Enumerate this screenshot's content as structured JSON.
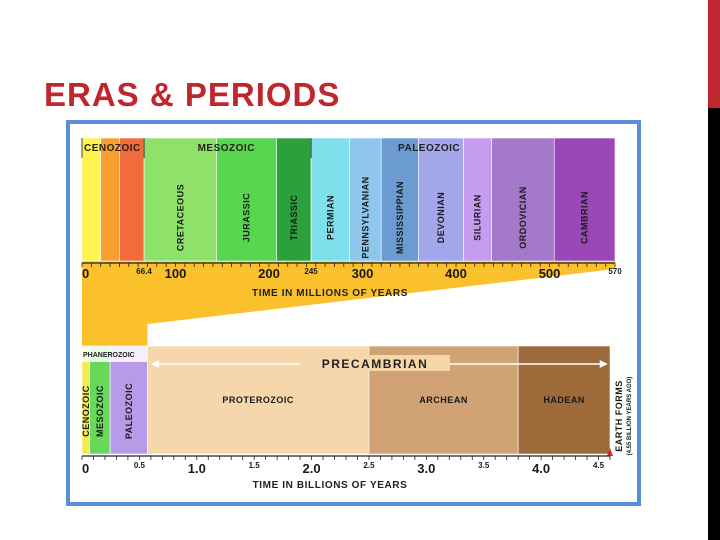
{
  "slide": {
    "title": "ERAS & PERIODS"
  },
  "colors": {
    "title": "#c0262d",
    "frame": "#5a8fd6",
    "connector": "#fbc12d"
  },
  "top": {
    "eras": [
      {
        "label": "CENOZOIC",
        "start": 0,
        "end": 66.4
      },
      {
        "label": "MESOZOIC",
        "start": 66.4,
        "end": 245
      },
      {
        "label": "PALEOZOIC",
        "start": 245,
        "end": 570
      }
    ],
    "periods": [
      {
        "label": "",
        "start": 0,
        "end": 20,
        "color": "#fff34d"
      },
      {
        "label": "",
        "start": 20,
        "end": 40,
        "color": "#f7a030"
      },
      {
        "label": "",
        "start": 40,
        "end": 66.4,
        "color": "#f26b3a"
      },
      {
        "label": "CRETACEOUS",
        "start": 66.4,
        "end": 144,
        "color": "#8ee26a"
      },
      {
        "label": "JURASSIC",
        "start": 144,
        "end": 208,
        "color": "#58d64f"
      },
      {
        "label": "TRIASSIC",
        "start": 208,
        "end": 245,
        "color": "#2ca03a"
      },
      {
        "label": "PERMIAN",
        "start": 245,
        "end": 286,
        "color": "#7ee0ea"
      },
      {
        "label": "PENNSYLVANIAN",
        "start": 286,
        "end": 320,
        "color": "#8fc6ec"
      },
      {
        "label": "MISSISSIPPIAN",
        "start": 320,
        "end": 360,
        "color": "#6b9bd0"
      },
      {
        "label": "DEVONIAN",
        "start": 360,
        "end": 408,
        "color": "#a4a6ec"
      },
      {
        "label": "SILURIAN",
        "start": 408,
        "end": 438,
        "color": "#c69cf0"
      },
      {
        "label": "ORDOVICIAN",
        "start": 438,
        "end": 505,
        "color": "#a478c8"
      },
      {
        "label": "CAMBRIAN",
        "start": 505,
        "end": 570,
        "color": "#9a48b8"
      }
    ],
    "ticks": [
      {
        "value": 0,
        "label": "0"
      },
      {
        "value": 66.4,
        "label": "66.4"
      },
      {
        "value": 100,
        "label": "100"
      },
      {
        "value": 200,
        "label": "200"
      },
      {
        "value": 245,
        "label": "245"
      },
      {
        "value": 300,
        "label": "300"
      },
      {
        "value": 400,
        "label": "400"
      },
      {
        "value": 500,
        "label": "500"
      },
      {
        "value": 570,
        "label": "570"
      }
    ],
    "axis_label": "TIME IN MILLIONS OF YEARS"
  },
  "bottom": {
    "phanerozoic_label": "PHANEROZOIC",
    "precambrian_label": "PRECAMBRIAN",
    "bands": [
      {
        "label": "CENOZOIC",
        "start": 0,
        "end": 0.066,
        "color": "#f2ea52"
      },
      {
        "label": "MESOZOIC",
        "start": 0.066,
        "end": 0.245,
        "color": "#68d85a"
      },
      {
        "label": "PALEOZOIC",
        "start": 0.245,
        "end": 0.57,
        "color": "#b99ae8"
      },
      {
        "label": "PROTEROZOIC",
        "start": 0.57,
        "end": 2.5,
        "color": "#f6d7ac"
      },
      {
        "label": "ARCHEAN",
        "start": 2.5,
        "end": 3.8,
        "color": "#d0a274"
      },
      {
        "label": "HADEAN",
        "start": 3.8,
        "end": 4.6,
        "color": "#9e6a3a"
      }
    ],
    "ticks": [
      {
        "value": 0,
        "label": "0",
        "major": true
      },
      {
        "value": 0.5,
        "label": "0.5",
        "major": false
      },
      {
        "value": 1.0,
        "label": "1.0",
        "major": true
      },
      {
        "value": 1.5,
        "label": "1.5",
        "major": false
      },
      {
        "value": 2.0,
        "label": "2.0",
        "major": true
      },
      {
        "value": 2.5,
        "label": "2.5",
        "major": false
      },
      {
        "value": 3.0,
        "label": "3.0",
        "major": true
      },
      {
        "value": 3.5,
        "label": "3.5",
        "major": false
      },
      {
        "value": 4.0,
        "label": "4.0",
        "major": true
      },
      {
        "value": 4.5,
        "label": "4.5",
        "major": false
      }
    ],
    "axis_label": "TIME IN BILLIONS OF YEARS",
    "earth_forms": "EARTH FORMS",
    "earth_forms_sub": "(4.55 BILLION YEARS AGO)"
  }
}
